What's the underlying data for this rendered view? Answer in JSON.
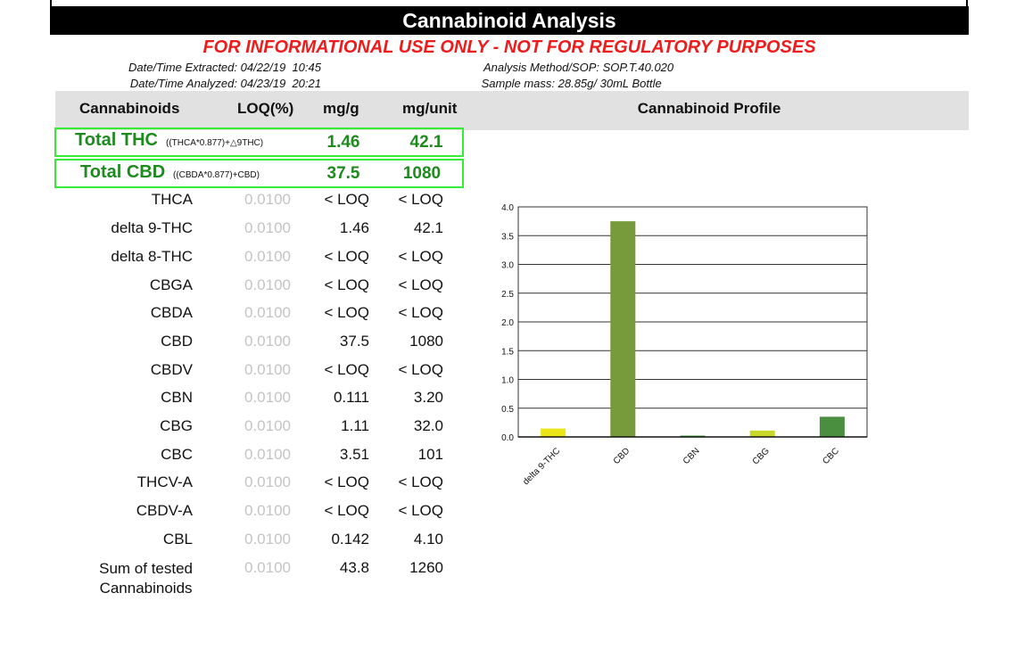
{
  "header": {
    "title": "Cannabinoid Analysis",
    "warning": "FOR INFORMATIONAL USE ONLY - NOT FOR REGULATORY PURPOSES"
  },
  "meta": {
    "extracted_label": "Date/Time Extracted:",
    "extracted_value": "04/22/19  10:45",
    "analyzed_label": "Date/Time  Analyzed:",
    "analyzed_value": "04/23/19  20:21",
    "method_label": "Analysis Method/SOP:",
    "method_value": "SOP.T.40.020",
    "mass_label": "Sample mass:",
    "mass_value": "28.85g/ 30mL Bottle"
  },
  "table": {
    "columns": [
      "Cannabinoids",
      "LOQ(%)",
      "mg/g",
      "mg/unit"
    ],
    "totals": [
      {
        "name": "Total THC",
        "formula": "((THCA*0.877)+△9THC)",
        "mg_g": "1.46",
        "mg_unit": "42.1"
      },
      {
        "name": "Total CBD",
        "formula": "((CBDA*0.877)+CBD)",
        "mg_g": "37.5",
        "mg_unit": "1080"
      }
    ],
    "rows": [
      {
        "name": "THCA",
        "loq": "0.0100",
        "mg_g": "< LOQ",
        "mg_unit": "< LOQ"
      },
      {
        "name": "delta 9-THC",
        "loq": "0.0100",
        "mg_g": "1.46",
        "mg_unit": "42.1"
      },
      {
        "name": "delta 8-THC",
        "loq": "0.0100",
        "mg_g": "< LOQ",
        "mg_unit": "< LOQ"
      },
      {
        "name": "CBGA",
        "loq": "0.0100",
        "mg_g": "< LOQ",
        "mg_unit": "< LOQ"
      },
      {
        "name": "CBDA",
        "loq": "0.0100",
        "mg_g": "< LOQ",
        "mg_unit": "< LOQ"
      },
      {
        "name": "CBD",
        "loq": "0.0100",
        "mg_g": "37.5",
        "mg_unit": "1080"
      },
      {
        "name": "CBDV",
        "loq": "0.0100",
        "mg_g": "< LOQ",
        "mg_unit": "< LOQ"
      },
      {
        "name": "CBN",
        "loq": "0.0100",
        "mg_g": "0.111",
        "mg_unit": "3.20"
      },
      {
        "name": "CBG",
        "loq": "0.0100",
        "mg_g": "1.11",
        "mg_unit": "32.0"
      },
      {
        "name": "CBC",
        "loq": "0.0100",
        "mg_g": "3.51",
        "mg_unit": "101"
      },
      {
        "name": "THCV-A",
        "loq": "0.0100",
        "mg_g": "< LOQ",
        "mg_unit": "< LOQ"
      },
      {
        "name": "CBDV-A",
        "loq": "0.0100",
        "mg_g": "< LOQ",
        "mg_unit": "< LOQ"
      },
      {
        "name": "CBL",
        "loq": "0.0100",
        "mg_g": "0.142",
        "mg_unit": "4.10"
      }
    ],
    "sum": {
      "name_line1": "Sum of tested",
      "name_line2": "Cannabinoids",
      "loq": "0.0100",
      "mg_g": "43.8",
      "mg_unit": "1260"
    }
  },
  "profile": {
    "title": "Cannabinoid Profile"
  },
  "chart_data": {
    "type": "bar",
    "categories": [
      "delta 9-THC",
      "CBD",
      "CBN",
      "CBG",
      "CBC"
    ],
    "values": [
      0.146,
      3.75,
      0.0111,
      0.111,
      0.351
    ],
    "colors": [
      "#ece619",
      "#779a3b",
      "#3f9d3f",
      "#c9d72b",
      "#4a8f3f"
    ],
    "title": "",
    "xlabel": "",
    "ylabel": "",
    "ylim": [
      0,
      4.0
    ],
    "yticks": [
      "0.0",
      "0.5",
      "1.0",
      "1.5",
      "2.0",
      "2.5",
      "3.0",
      "3.5",
      "4.0"
    ],
    "grid": true
  }
}
